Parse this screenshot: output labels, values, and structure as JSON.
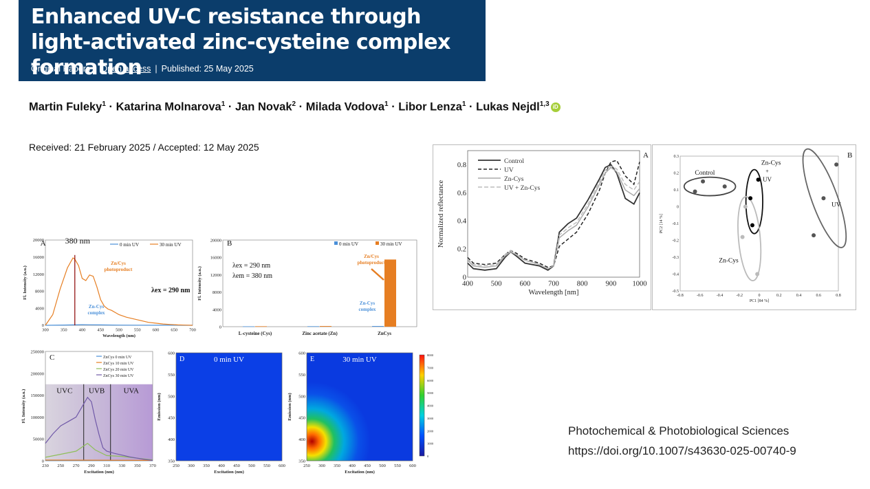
{
  "header": {
    "title": "Enhanced UV-C resistance through light-activated zinc-cysteine complex formation",
    "article_type": "Original Papers",
    "access": "Open access",
    "published": "Published: 25 May 2025"
  },
  "authors": [
    {
      "name": "Martin Fuleky",
      "aff": "1"
    },
    {
      "name": "Katarina Molnarova",
      "aff": "1"
    },
    {
      "name": "Jan Novak",
      "aff": "2"
    },
    {
      "name": "Milada Vodova",
      "aff": "1"
    },
    {
      "name": "Libor Lenza",
      "aff": "1"
    },
    {
      "name": "Lukas Nejdl",
      "aff": "1,3"
    }
  ],
  "dates": "Received: 21 February 2025 / Accepted: 12 May 2025",
  "journal": {
    "name": "Photochemical & Photobiological Sciences",
    "doi": "https://doi.org/10.1007/s43630-025-00740-9"
  },
  "chart_data": [
    {
      "panel": "A",
      "type": "line",
      "xlabel": "Wavelength (nm)",
      "ylabel": "Fl. Intensity (a.u.)",
      "xlim": [
        300,
        700
      ],
      "ylim": [
        0,
        20000
      ],
      "xticks": [
        300,
        350,
        400,
        450,
        500,
        550,
        600,
        650,
        700
      ],
      "yticks": [
        0,
        4000,
        8000,
        12000,
        16000,
        20000
      ],
      "series": [
        {
          "name": "0 min UV",
          "color": "#4a90d9",
          "x": [
            300,
            350,
            400,
            450,
            500,
            550,
            600,
            650,
            700
          ],
          "y": [
            0,
            60,
            150,
            100,
            50,
            30,
            20,
            10,
            0
          ]
        },
        {
          "name": "30 min UV",
          "color": "#e67e22",
          "x": [
            300,
            320,
            340,
            360,
            375,
            380,
            390,
            400,
            410,
            420,
            430,
            440,
            450,
            460,
            470,
            480,
            500,
            520,
            540,
            560,
            580,
            600,
            620,
            640,
            660,
            680,
            700
          ],
          "y": [
            0,
            2500,
            8500,
            13500,
            15800,
            15500,
            14000,
            11000,
            10500,
            11800,
            11500,
            9000,
            6000,
            4500,
            3800,
            3500,
            2500,
            1900,
            1500,
            1100,
            700,
            500,
            300,
            200,
            100,
            50,
            0
          ]
        }
      ],
      "annotations": [
        "380 nm",
        "Zn/Cys photoproduct",
        "Zn-Cys complex",
        "λex = 290 nm"
      ]
    },
    {
      "panel": "B",
      "type": "bar",
      "ylabel": "Fl. Intensity (a.u.)",
      "ylim": [
        0,
        20000
      ],
      "yticks": [
        0,
        4000,
        8000,
        12000,
        16000,
        20000
      ],
      "categories": [
        "L-cysteine (Cys)",
        "Zinc acetate (Zn)",
        "ZnCys"
      ],
      "series": [
        {
          "name": "0 min UV",
          "color": "#4a90d9",
          "values": [
            80,
            100,
            150
          ]
        },
        {
          "name": "30 min UV",
          "color": "#e67e22",
          "values": [
            100,
            150,
            15500
          ]
        }
      ],
      "annotations": [
        "λex = 290 nm",
        "λem = 380 nm",
        "Zn/Cys photoproduct",
        "Zn-Cys complex"
      ]
    },
    {
      "panel": "A",
      "type": "line",
      "xlabel": "Wavelength [nm]",
      "ylabel": "Normalized reflectance",
      "xlim": [
        400,
        1000
      ],
      "ylim": [
        0,
        0.9
      ],
      "xticks": [
        400,
        500,
        600,
        700,
        800,
        900,
        1000
      ],
      "yticks": [
        0,
        0.2,
        0.4,
        0.6,
        0.8
      ],
      "series": [
        {
          "name": "Control",
          "style": "solid-dark",
          "x": [
            400,
            420,
            460,
            500,
            530,
            550,
            570,
            600,
            650,
            680,
            700,
            720,
            750,
            780,
            820,
            860,
            880,
            900,
            920,
            950,
            980,
            1000
          ],
          "y": [
            0.1,
            0.06,
            0.05,
            0.06,
            0.14,
            0.18,
            0.15,
            0.1,
            0.08,
            0.05,
            0.08,
            0.32,
            0.38,
            0.42,
            0.55,
            0.7,
            0.78,
            0.8,
            0.74,
            0.56,
            0.52,
            0.6
          ]
        },
        {
          "name": "UV",
          "style": "dashed-dark",
          "x": [
            400,
            420,
            460,
            500,
            530,
            550,
            570,
            600,
            650,
            680,
            700,
            720,
            750,
            780,
            820,
            860,
            880,
            900,
            920,
            950,
            980,
            1000
          ],
          "y": [
            0.14,
            0.1,
            0.09,
            0.1,
            0.16,
            0.19,
            0.17,
            0.13,
            0.1,
            0.07,
            0.08,
            0.22,
            0.27,
            0.32,
            0.45,
            0.62,
            0.74,
            0.82,
            0.83,
            0.72,
            0.66,
            0.82
          ]
        },
        {
          "name": "Zn-Cys",
          "style": "solid-light",
          "x": [
            400,
            420,
            460,
            500,
            530,
            550,
            570,
            600,
            650,
            680,
            700,
            720,
            750,
            780,
            820,
            860,
            880,
            900,
            920,
            950,
            980,
            1000
          ],
          "y": [
            0.12,
            0.08,
            0.07,
            0.08,
            0.15,
            0.18,
            0.16,
            0.12,
            0.09,
            0.06,
            0.08,
            0.28,
            0.33,
            0.37,
            0.5,
            0.66,
            0.74,
            0.78,
            0.75,
            0.62,
            0.58,
            0.63
          ]
        },
        {
          "name": "UV + Zn-Cys",
          "style": "dashed-light",
          "x": [
            400,
            420,
            460,
            500,
            530,
            550,
            570,
            600,
            650,
            680,
            700,
            720,
            750,
            780,
            820,
            860,
            880,
            900,
            920,
            950,
            980,
            1000
          ],
          "y": [
            0.13,
            0.09,
            0.08,
            0.09,
            0.16,
            0.19,
            0.16,
            0.12,
            0.09,
            0.06,
            0.08,
            0.3,
            0.35,
            0.39,
            0.52,
            0.68,
            0.76,
            0.79,
            0.77,
            0.66,
            0.62,
            0.68
          ]
        }
      ]
    },
    {
      "panel": "B",
      "type": "scatter",
      "xlabel": "PC1 [84 %]",
      "ylabel": "PC2 [14 %]",
      "xlim": [
        -0.8,
        0.8
      ],
      "ylim": [
        -0.5,
        0.3
      ],
      "xticks": [
        -0.8,
        -0.6,
        -0.4,
        -0.2,
        0,
        0.2,
        0.4,
        0.6,
        0.8
      ],
      "yticks": [
        -0.5,
        -0.4,
        -0.3,
        -0.2,
        -0.1,
        0,
        0.1,
        0.2,
        0.3
      ],
      "series": [
        {
          "name": "Control",
          "color": "#555555",
          "x": [
            -0.65,
            -0.57,
            -0.35
          ],
          "y": [
            0.09,
            0.15,
            0.12
          ]
        },
        {
          "name": "Zn-Cys + UV",
          "color": "#000000",
          "x": [
            -0.01,
            -0.09,
            -0.07
          ],
          "y": [
            0.16,
            0.05,
            -0.11
          ]
        },
        {
          "name": "UV",
          "color": "#555555",
          "x": [
            0.78,
            0.65,
            0.55
          ],
          "y": [
            0.25,
            0.05,
            -0.17
          ]
        },
        {
          "name": "Zn-Cys",
          "color": "#bbbbbb",
          "x": [
            -0.14,
            -0.17,
            -0.02
          ],
          "y": [
            0.0,
            -0.18,
            -0.4
          ]
        }
      ]
    },
    {
      "panel": "C",
      "type": "line",
      "xlabel": "Excitation (nm)",
      "ylabel": "Fl. Intensity (a.u.)",
      "xlim": [
        230,
        370
      ],
      "ylim": [
        0,
        250000
      ],
      "xticks": [
        230,
        250,
        270,
        290,
        310,
        330,
        350,
        370
      ],
      "yticks": [
        0,
        50000,
        100000,
        150000,
        200000,
        250000
      ],
      "regions": [
        "UVC",
        "UVB",
        "UVA"
      ],
      "series": [
        {
          "name": "ZnCys 0 min UV",
          "color": "#4a90d9",
          "x": [
            230,
            370
          ],
          "y": [
            500,
            500
          ]
        },
        {
          "name": "ZnCys 10 min UV",
          "color": "#e67e22",
          "x": [
            230,
            370
          ],
          "y": [
            1500,
            1000
          ]
        },
        {
          "name": "ZnCys 20 min UV",
          "color": "#8fbf5a",
          "x": [
            230,
            250,
            270,
            285,
            295,
            310,
            330,
            350,
            370
          ],
          "y": [
            8000,
            15000,
            22000,
            40000,
            25000,
            12000,
            10000,
            6000,
            2000
          ]
        },
        {
          "name": "ZnCys 30 min UV",
          "color": "#7059a8",
          "x": [
            230,
            240,
            250,
            260,
            270,
            280,
            285,
            290,
            295,
            300,
            305,
            310,
            320,
            330,
            340,
            350,
            360,
            370
          ],
          "y": [
            40000,
            62000,
            80000,
            90000,
            100000,
            130000,
            145000,
            135000,
            95000,
            60000,
            30000,
            22000,
            17000,
            13000,
            9000,
            6000,
            3000,
            1000
          ]
        }
      ]
    },
    {
      "panel": "D",
      "type": "heatmap",
      "title": "0 min UV",
      "xlabel": "Excitation (nm)",
      "ylabel": "Emission (nm)",
      "xlim": [
        250,
        600
      ],
      "ylim": [
        350,
        600
      ],
      "xticks": [
        250,
        300,
        350,
        400,
        450,
        500,
        550,
        600
      ],
      "yticks": [
        350,
        400,
        450,
        500,
        550,
        600
      ]
    },
    {
      "panel": "E",
      "type": "heatmap",
      "title": "30 min UV",
      "xlabel": "Excitation (nm)",
      "ylabel": "Emission (nm)",
      "xlim": [
        250,
        600
      ],
      "ylim": [
        350,
        600
      ],
      "xticks": [
        250,
        300,
        350,
        400,
        450,
        500,
        550,
        600
      ],
      "yticks": [
        350,
        400,
        450,
        500,
        550,
        600
      ],
      "colorbar_ticks": [
        0,
        1000,
        2000,
        3000,
        4000,
        5000,
        6000,
        7000,
        8000
      ]
    }
  ]
}
